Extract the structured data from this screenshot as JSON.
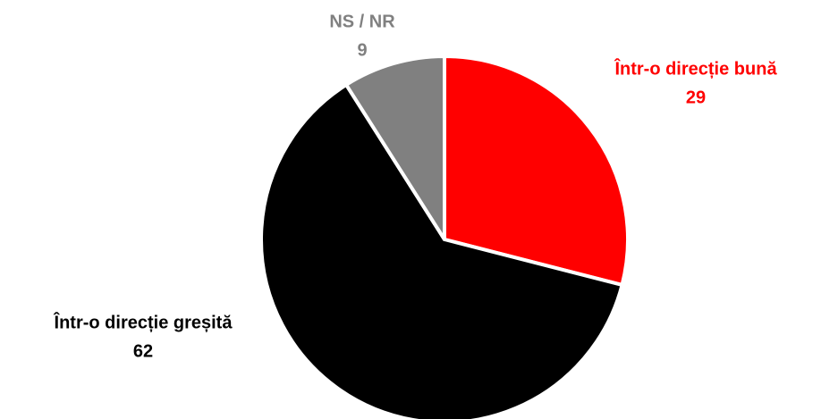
{
  "chart_data": {
    "type": "pie",
    "categories": [
      "Într-o direcție bună",
      "Într-o direcție greșită",
      "NS / NR"
    ],
    "values": [
      29,
      62,
      9
    ],
    "colors": [
      "#ff0000",
      "#000000",
      "#808080"
    ]
  }
}
